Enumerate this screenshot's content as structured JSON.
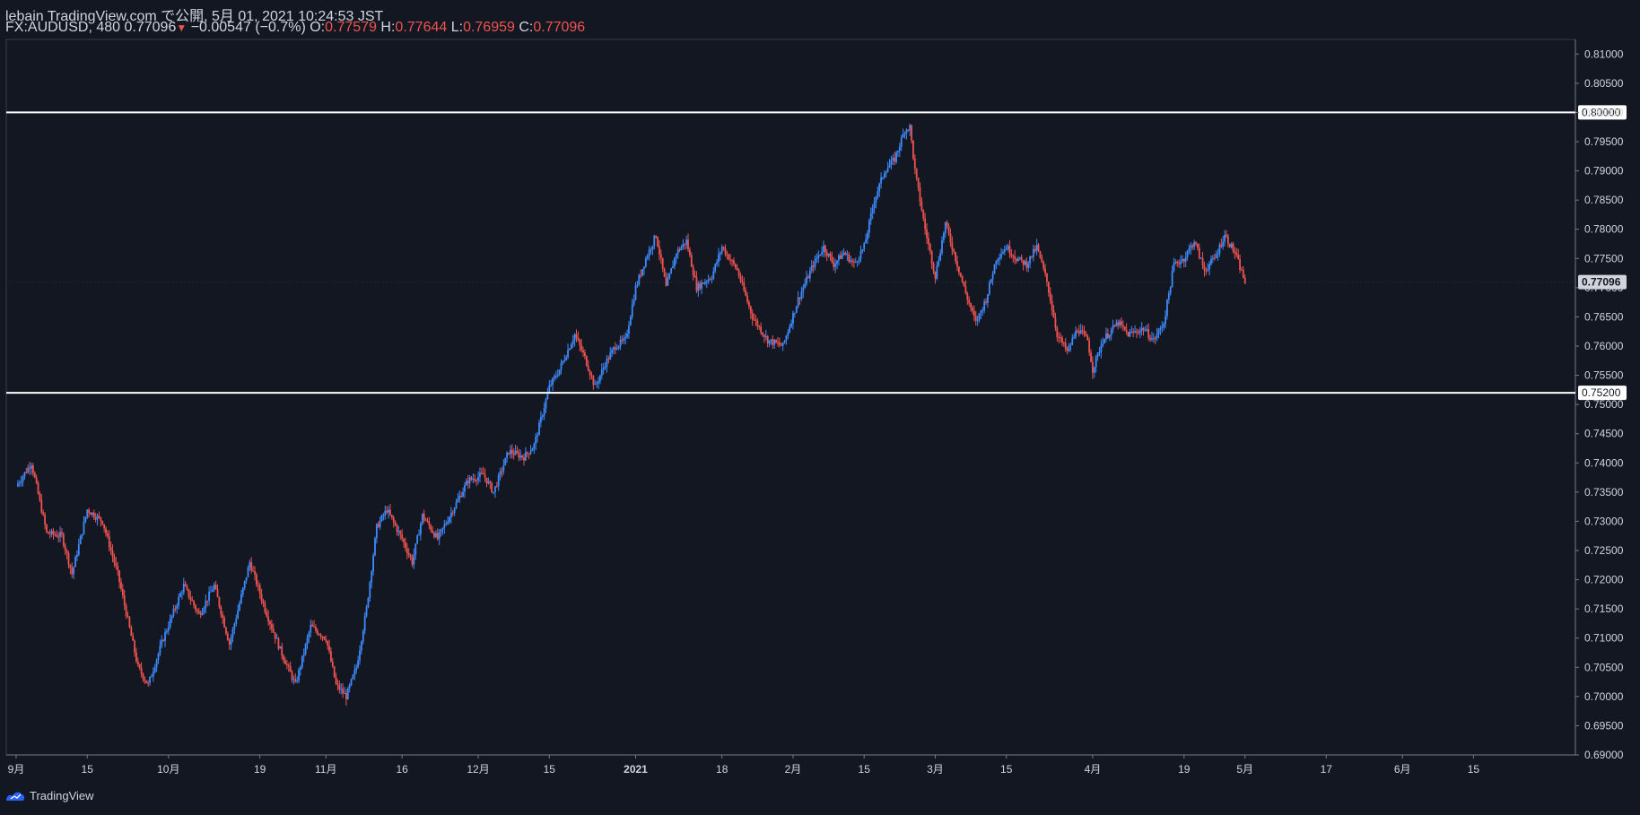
{
  "header": {
    "line1": "lebain TradingView.com で公開, 5月 01, 2021 10:24:53 JST",
    "symbol": "FX:AUDUSD, 480",
    "last": "0.77096",
    "arrow": "▼",
    "change": "−0.00547 (−0.7%)",
    "o_label": "O:",
    "o_value": "0.77579",
    "h_label": "H:",
    "h_value": "0.77644",
    "l_label": "L:",
    "l_value": "0.76959",
    "c_label": "C:",
    "c_value": "0.77096"
  },
  "footer": {
    "brand": "TradingView"
  },
  "colors": {
    "background": "#131722",
    "up": "#2962ff",
    "up_light": "#3d8bfd",
    "down": "#ef5350",
    "text": "#d1d4dc"
  },
  "chart_data": {
    "type": "candlestick",
    "symbol": "FX:AUDUSD",
    "interval": "480",
    "ylim": [
      0.69,
      0.8125
    ],
    "yticks": [
      "0.81000",
      "0.80500",
      "0.80000",
      "0.79500",
      "0.79000",
      "0.78500",
      "0.78000",
      "0.77500",
      "0.77000",
      "0.76500",
      "0.76000",
      "0.75500",
      "0.75000",
      "0.74500",
      "0.74000",
      "0.73500",
      "0.73000",
      "0.72500",
      "0.72000",
      "0.71500",
      "0.71000",
      "0.70500",
      "0.70000",
      "0.69500",
      "0.69000"
    ],
    "xticks": [
      {
        "label": "9月",
        "day": 0
      },
      {
        "label": "15",
        "day": 14
      },
      {
        "label": "10月",
        "day": 30
      },
      {
        "label": "19",
        "day": 48
      },
      {
        "label": "11月",
        "day": 61
      },
      {
        "label": "16",
        "day": 76
      },
      {
        "label": "12月",
        "day": 91
      },
      {
        "label": "15",
        "day": 105
      },
      {
        "label": "2021",
        "day": 122
      },
      {
        "label": "18",
        "day": 139
      },
      {
        "label": "2月",
        "day": 153
      },
      {
        "label": "15",
        "day": 167
      },
      {
        "label": "3月",
        "day": 181
      },
      {
        "label": "15",
        "day": 195
      },
      {
        "label": "4月",
        "day": 212
      },
      {
        "label": "19",
        "day": 230
      },
      {
        "label": "5月",
        "day": 242
      },
      {
        "label": "17",
        "day": 258
      },
      {
        "label": "6月",
        "day": 273
      },
      {
        "label": "15",
        "day": 287
      }
    ],
    "horizontal_lines": [
      {
        "label": "0.80000",
        "value": 0.8
      },
      {
        "label": "0.75200",
        "value": 0.752
      }
    ],
    "last_price": {
      "label": "0.77096",
      "value": 0.77096
    },
    "last_day": 242,
    "path": [
      [
        0,
        0.736
      ],
      [
        3,
        0.74
      ],
      [
        6,
        0.728
      ],
      [
        9,
        0.7275
      ],
      [
        11,
        0.721
      ],
      [
        14,
        0.732
      ],
      [
        17,
        0.73
      ],
      [
        20,
        0.721
      ],
      [
        24,
        0.705
      ],
      [
        26,
        0.702
      ],
      [
        29,
        0.71
      ],
      [
        33,
        0.719
      ],
      [
        36,
        0.714
      ],
      [
        39,
        0.719
      ],
      [
        42,
        0.709
      ],
      [
        46,
        0.723
      ],
      [
        49,
        0.715
      ],
      [
        52,
        0.708
      ],
      [
        55,
        0.702
      ],
      [
        58,
        0.712
      ],
      [
        61,
        0.71
      ],
      [
        63,
        0.702
      ],
      [
        65,
        0.7
      ],
      [
        67,
        0.705
      ],
      [
        69,
        0.715
      ],
      [
        71,
        0.729
      ],
      [
        73,
        0.732
      ],
      [
        76,
        0.727
      ],
      [
        78,
        0.723
      ],
      [
        80,
        0.731
      ],
      [
        83,
        0.727
      ],
      [
        86,
        0.732
      ],
      [
        89,
        0.737
      ],
      [
        92,
        0.738
      ],
      [
        94,
        0.735
      ],
      [
        97,
        0.742
      ],
      [
        100,
        0.741
      ],
      [
        102,
        0.743
      ],
      [
        105,
        0.753
      ],
      [
        107,
        0.756
      ],
      [
        110,
        0.762
      ],
      [
        112,
        0.758
      ],
      [
        114,
        0.753
      ],
      [
        116,
        0.757
      ],
      [
        118,
        0.76
      ],
      [
        120,
        0.761
      ],
      [
        122,
        0.77
      ],
      [
        124,
        0.775
      ],
      [
        126,
        0.779
      ],
      [
        128,
        0.77
      ],
      [
        130,
        0.776
      ],
      [
        132,
        0.778
      ],
      [
        134,
        0.77
      ],
      [
        137,
        0.772
      ],
      [
        139,
        0.777
      ],
      [
        142,
        0.773
      ],
      [
        145,
        0.765
      ],
      [
        148,
        0.761
      ],
      [
        151,
        0.76
      ],
      [
        154,
        0.768
      ],
      [
        157,
        0.774
      ],
      [
        159,
        0.777
      ],
      [
        161,
        0.774
      ],
      [
        163,
        0.776
      ],
      [
        165,
        0.774
      ],
      [
        167,
        0.777
      ],
      [
        169,
        0.785
      ],
      [
        171,
        0.79
      ],
      [
        173,
        0.792
      ],
      [
        175,
        0.797
      ],
      [
        176,
        0.7975
      ],
      [
        177,
        0.79
      ],
      [
        179,
        0.78
      ],
      [
        181,
        0.772
      ],
      [
        183,
        0.781
      ],
      [
        185,
        0.775
      ],
      [
        187,
        0.769
      ],
      [
        189,
        0.764
      ],
      [
        191,
        0.768
      ],
      [
        193,
        0.775
      ],
      [
        195,
        0.777
      ],
      [
        197,
        0.775
      ],
      [
        199,
        0.774
      ],
      [
        201,
        0.777
      ],
      [
        203,
        0.771
      ],
      [
        205,
        0.762
      ],
      [
        207,
        0.759
      ],
      [
        209,
        0.763
      ],
      [
        211,
        0.761
      ],
      [
        212,
        0.756
      ],
      [
        214,
        0.761
      ],
      [
        217,
        0.764
      ],
      [
        219,
        0.762
      ],
      [
        222,
        0.763
      ],
      [
        224,
        0.761
      ],
      [
        226,
        0.764
      ],
      [
        228,
        0.774
      ],
      [
        230,
        0.775
      ],
      [
        232,
        0.778
      ],
      [
        234,
        0.773
      ],
      [
        236,
        0.775
      ],
      [
        238,
        0.779
      ],
      [
        240,
        0.776
      ],
      [
        242,
        0.771
      ]
    ]
  }
}
